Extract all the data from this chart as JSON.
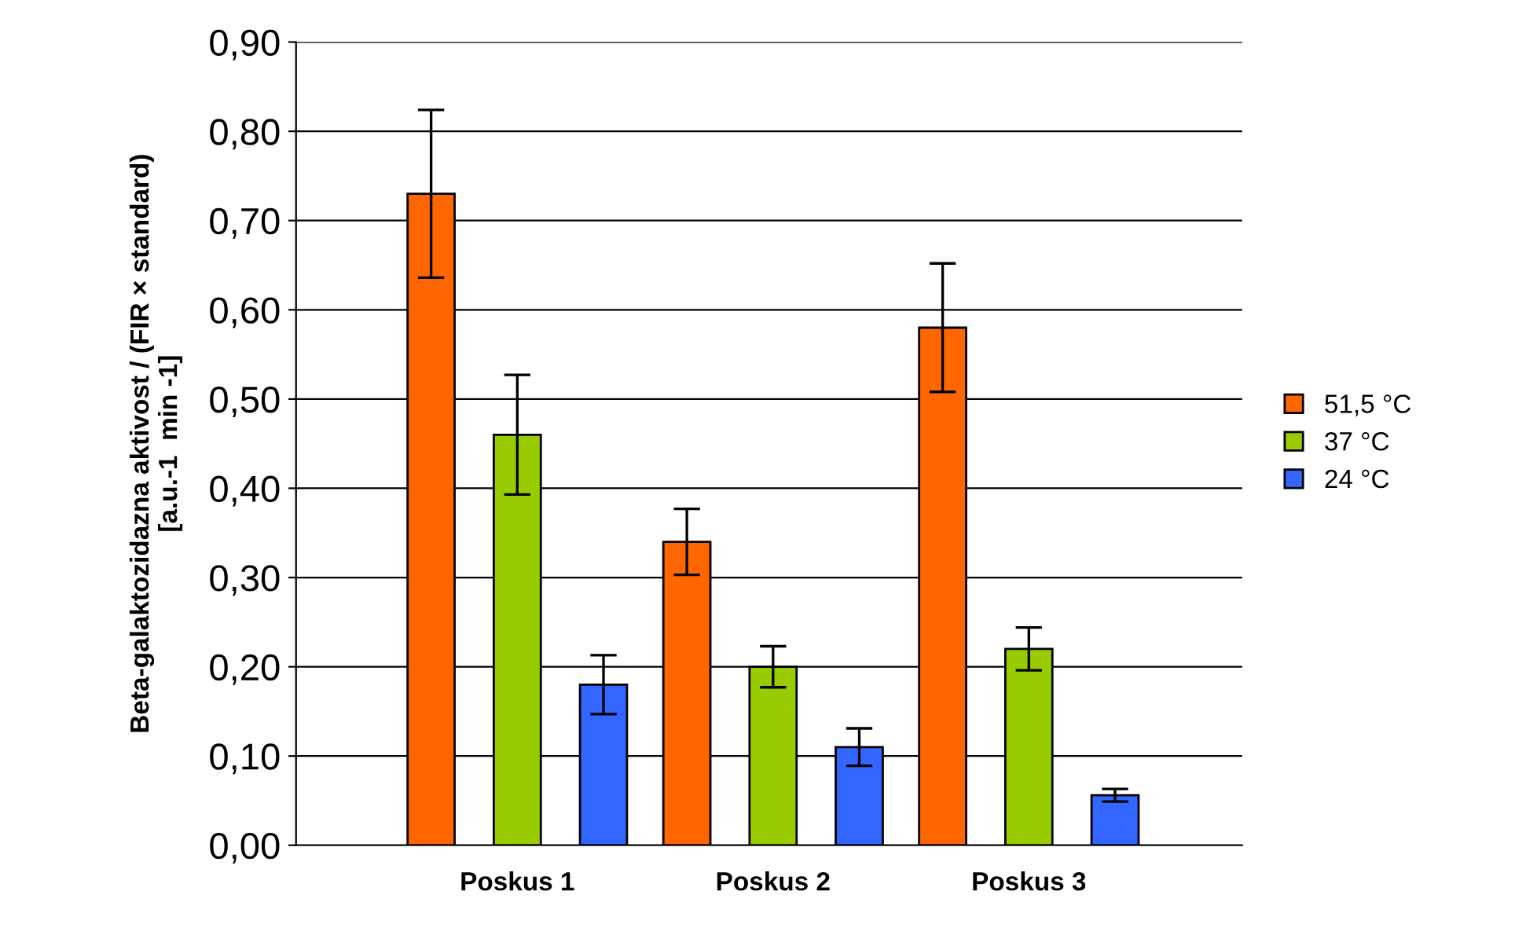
{
  "chart_data": {
    "type": "bar",
    "ylabel": "Beta-galaktozidazna aktivost / (FIR × standard)\n[a.u.-1  min -1]",
    "categories": [
      "Poskus 1",
      "Poskus 2",
      "Poskus 3"
    ],
    "series": [
      {
        "name": "51,5 °C",
        "color": "#ff6600",
        "values": [
          0.73,
          0.34,
          0.58
        ],
        "errors": [
          0.094,
          0.037,
          0.072
        ]
      },
      {
        "name": "37 °C",
        "color": "#99cc00",
        "values": [
          0.46,
          0.2,
          0.22
        ],
        "errors": [
          0.067,
          0.023,
          0.024
        ]
      },
      {
        "name": "24 °C",
        "color": "#3366ff",
        "values": [
          0.18,
          0.11,
          0.056
        ],
        "errors": [
          0.033,
          0.021,
          0.007
        ]
      }
    ],
    "ylim": [
      0,
      0.9
    ],
    "yticks": [
      {
        "value": 0,
        "label": "0,00"
      },
      {
        "value": 0.1,
        "label": "0,10"
      },
      {
        "value": 0.2,
        "label": "0,20"
      },
      {
        "value": 0.3,
        "label": "0,30"
      },
      {
        "value": 0.4,
        "label": "0,40"
      },
      {
        "value": 0.5,
        "label": "0,50"
      },
      {
        "value": 0.6,
        "label": "0,60"
      },
      {
        "value": 0.7,
        "label": "0,70"
      },
      {
        "value": 0.8,
        "label": "0,80"
      },
      {
        "value": 0.9,
        "label": "0,90"
      }
    ],
    "grid": "y",
    "legend": "right"
  }
}
